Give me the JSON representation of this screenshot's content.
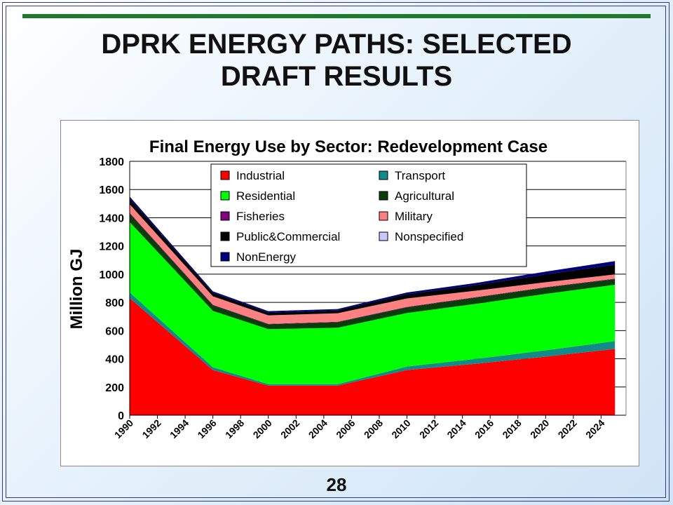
{
  "slide": {
    "title_lines": [
      "DPRK ENERGY PATHS: SELECTED",
      "DRAFT RESULTS"
    ],
    "page_number": "28",
    "rule_color": "#1f7a2e"
  },
  "chart_data": {
    "type": "area",
    "stacked": true,
    "title": "Final Energy Use by Sector: Redevelopment Case",
    "xlabel": "",
    "ylabel": "Million GJ",
    "ylim": [
      0,
      1800
    ],
    "yticks": [
      0,
      200,
      400,
      600,
      800,
      1000,
      1200,
      1400,
      1600,
      1800
    ],
    "grid": "horizontal",
    "legend_position": "top-center",
    "x": [
      1990,
      1996,
      2000,
      2005,
      2010,
      2015,
      2020,
      2025
    ],
    "xtick_labels": [
      "1990",
      "1992",
      "1994",
      "1996",
      "1998",
      "2000",
      "2002",
      "2004",
      "2006",
      "2008",
      "2010",
      "2012",
      "2014",
      "2016",
      "2018",
      "2020",
      "2022",
      "2024"
    ],
    "series": [
      {
        "name": "Industrial",
        "color": "#ff0000",
        "values": [
          830,
          320,
          210,
          210,
          320,
          365,
          415,
          470
        ]
      },
      {
        "name": "Transport",
        "color": "#138a8a",
        "values": [
          40,
          20,
          10,
          10,
          25,
          35,
          45,
          55
        ]
      },
      {
        "name": "Residential",
        "color": "#00ff00",
        "values": [
          500,
          400,
          390,
          400,
          380,
          390,
          400,
          400
        ]
      },
      {
        "name": "Agricultural",
        "color": "#0b3d0b",
        "values": [
          60,
          40,
          35,
          40,
          40,
          45,
          45,
          40
        ]
      },
      {
        "name": "Fisheries",
        "color": "#800080",
        "values": [
          5,
          3,
          3,
          3,
          3,
          3,
          3,
          3
        ]
      },
      {
        "name": "Military",
        "color": "#ff8080",
        "values": [
          60,
          60,
          60,
          60,
          60,
          45,
          35,
          30
        ]
      },
      {
        "name": "Public&Commercial",
        "color": "#000000",
        "values": [
          40,
          25,
          20,
          20,
          30,
          40,
          55,
          70
        ]
      },
      {
        "name": "Nonspecified",
        "color": "#c8c8ff",
        "values": [
          0,
          0,
          0,
          0,
          0,
          0,
          0,
          0
        ]
      },
      {
        "name": "NonEnergy",
        "color": "#000080",
        "values": [
          15,
          10,
          10,
          10,
          12,
          15,
          20,
          25
        ]
      }
    ]
  }
}
